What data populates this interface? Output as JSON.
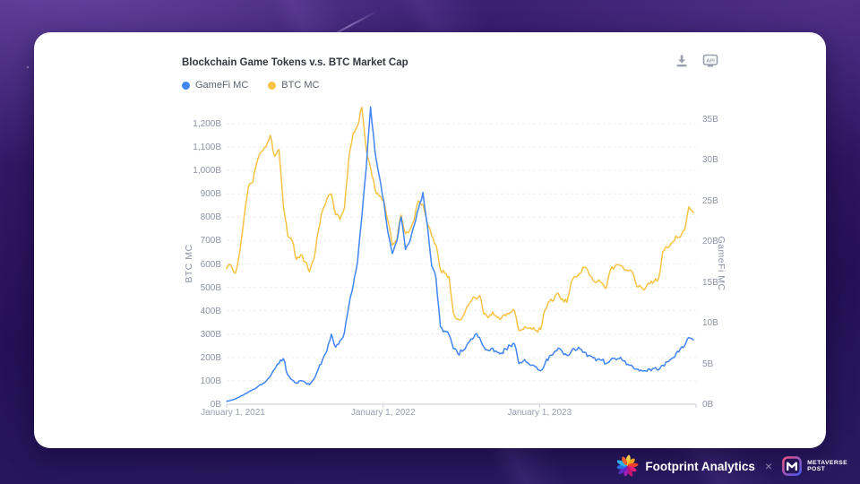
{
  "card": {
    "toolbar": {
      "download": "download",
      "api_label": "API"
    }
  },
  "chart_data": {
    "type": "line",
    "title": "Blockchain Game Tokens v.s. BTC Market Cap",
    "legend": [
      {
        "label": "GameFi MC",
        "color": "#4285F4"
      },
      {
        "label": "BTC MC",
        "color": "#F6C344"
      }
    ],
    "grid": "horizontal-dashed",
    "legend_position": "top-left",
    "x_axis": {
      "labels": [
        "January 1, 2021",
        "January 1, 2022",
        "January 1, 2023"
      ],
      "range": [
        "2021-01-01",
        "2024-01-01"
      ],
      "points_interval": "~10 days"
    },
    "left_axis": {
      "title": "BTC MC",
      "ticks": [
        "0B",
        "100B",
        "200B",
        "300B",
        "400B",
        "500B",
        "600B",
        "700B",
        "800B",
        "900B",
        "1,000B",
        "1,100B",
        "1,200B"
      ],
      "min": 0,
      "max": 1200,
      "step": 100,
      "unit": "B USD"
    },
    "right_axis": {
      "title": "GameFi MC",
      "ticks": [
        "0B",
        "5B",
        "10B",
        "15B",
        "20B",
        "25B",
        "30B",
        "35B"
      ],
      "min": 0,
      "max": 35,
      "step": 5,
      "unit": "B USD"
    },
    "series": [
      {
        "name": "BTC MC",
        "axis": "left",
        "color": "#F6C344",
        "values": [
          580,
          595,
          560,
          650,
          800,
          930,
          950,
          1040,
          1080,
          1100,
          1150,
          1060,
          1090,
          850,
          720,
          700,
          620,
          640,
          610,
          565,
          620,
          740,
          830,
          880,
          900,
          810,
          790,
          840,
          1050,
          1160,
          1190,
          1270,
          1090,
          1010,
          920,
          890,
          870,
          780,
          680,
          700,
          810,
          730,
          745,
          790,
          870,
          855,
          770,
          720,
          680,
          575,
          560,
          545,
          390,
          365,
          370,
          415,
          440,
          455,
          465,
          385,
          370,
          395,
          370,
          368,
          378,
          392,
          398,
          315,
          320,
          325,
          320,
          315,
          320,
          405,
          440,
          445,
          475,
          450,
          435,
          525,
          545,
          560,
          585,
          560,
          530,
          525,
          520,
          495,
          575,
          590,
          595,
          580,
          570,
          565,
          505,
          500,
          495,
          515,
          525,
          535,
          655,
          670,
          690,
          720,
          715,
          745,
          845,
          820
        ]
      },
      {
        "name": "GameFi MC",
        "axis": "right",
        "color": "#4285F4",
        "values": [
          0.35,
          0.5,
          0.65,
          0.9,
          1.2,
          1.5,
          1.8,
          2.1,
          2.4,
          2.8,
          3.4,
          4.3,
          5.0,
          5.6,
          3.6,
          3.0,
          2.6,
          2.9,
          2.7,
          2.4,
          3.1,
          4.3,
          5.5,
          6.6,
          8.6,
          7.0,
          7.8,
          8.8,
          12.0,
          14.5,
          17.5,
          23.0,
          29.0,
          36.5,
          31.0,
          28.0,
          25.0,
          21.0,
          18.5,
          20.0,
          23.0,
          19.0,
          20.0,
          22.0,
          24.0,
          26.0,
          22.0,
          17.0,
          15.5,
          9.5,
          9.0,
          8.5,
          6.8,
          6.2,
          6.5,
          7.2,
          8.0,
          8.6,
          8.2,
          7.0,
          6.6,
          6.9,
          6.4,
          6.3,
          6.8,
          7.2,
          7.4,
          5.0,
          5.3,
          5.1,
          4.8,
          4.6,
          4.1,
          5.0,
          5.9,
          6.3,
          6.9,
          6.4,
          6.0,
          6.5,
          6.6,
          6.8,
          6.4,
          6.0,
          5.7,
          5.5,
          5.4,
          5.0,
          5.4,
          5.6,
          5.6,
          5.3,
          4.9,
          4.7,
          4.3,
          4.2,
          4.1,
          4.3,
          4.4,
          4.2,
          4.8,
          5.2,
          5.6,
          6.2,
          6.8,
          7.2,
          8.2,
          7.9
        ]
      }
    ]
  },
  "footer": {
    "brand": "Footprint Analytics",
    "separator": "×",
    "partner_line1": "METAVERSE",
    "partner_line2": "POST"
  }
}
